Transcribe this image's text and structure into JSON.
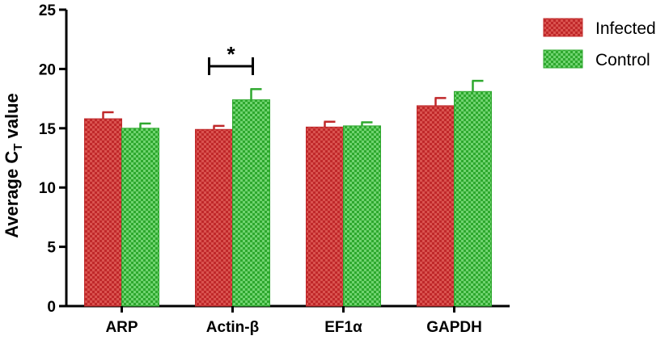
{
  "chart_data": {
    "type": "bar",
    "categories": [
      "ARP",
      "Actin-β",
      "EF1α",
      "GAPDH"
    ],
    "series": [
      {
        "name": "Infected",
        "values": [
          15.8,
          14.9,
          15.1,
          16.9
        ],
        "errors": [
          0.55,
          0.3,
          0.45,
          0.65
        ],
        "color": "#d9534f",
        "pattern_color": "#c0282a"
      },
      {
        "name": "Control",
        "values": [
          15.0,
          17.4,
          15.2,
          18.1
        ],
        "errors": [
          0.4,
          0.9,
          0.3,
          0.9
        ],
        "color": "#6fd36f",
        "pattern_color": "#2ea82e"
      }
    ],
    "ylabel_main": "Average C",
    "ylabel_sub": "T",
    "ylabel_tail": " value",
    "ylim": [
      0,
      25
    ],
    "yticks": [
      "0",
      "5",
      "10",
      "15",
      "20",
      "25"
    ],
    "legend_position": "top-right",
    "annotation": {
      "text": "*",
      "category_index": 1
    }
  }
}
